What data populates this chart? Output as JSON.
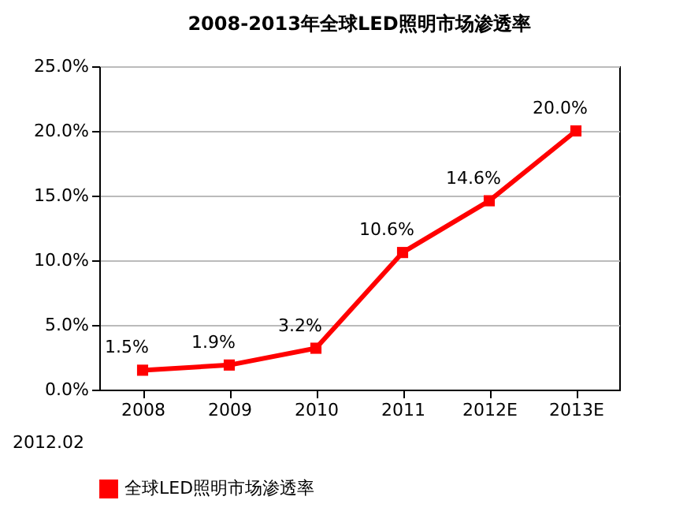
{
  "chart_data": {
    "type": "line",
    "title": "2008-2013年全球LED照明市场渗透率",
    "categories": [
      "2008",
      "2009",
      "2010",
      "2011",
      "2012E",
      "2013E"
    ],
    "series": [
      {
        "name": "全球LED照明市场渗透率",
        "color": "#ff0000",
        "values": [
          1.5,
          1.9,
          3.2,
          10.6,
          14.6,
          20.0
        ],
        "value_labels": [
          "1.5%",
          "1.9%",
          "3.2%",
          "10.6%",
          "14.6%",
          "20.0%"
        ]
      }
    ],
    "ylim": [
      0,
      25
    ],
    "yticks": [
      {
        "value": 0,
        "label": "0.0%"
      },
      {
        "value": 5,
        "label": "5.0%"
      },
      {
        "value": 10,
        "label": "10.0%"
      },
      {
        "value": 15,
        "label": "15.0%"
      },
      {
        "value": 20,
        "label": "20.0%"
      },
      {
        "value": 25,
        "label": "25.0%"
      }
    ],
    "grid": "y",
    "legend": "bottom",
    "marker": "square",
    "line_style": "solid",
    "annotations": [
      "2012.02"
    ]
  }
}
